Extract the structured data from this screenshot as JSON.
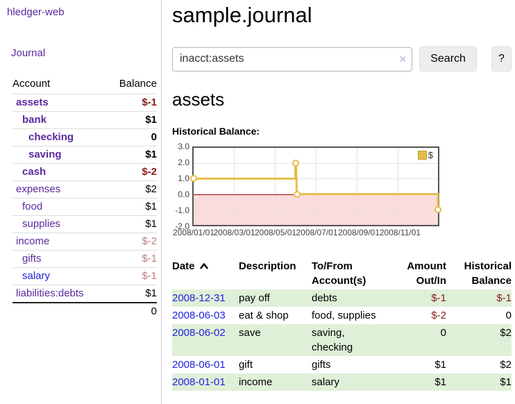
{
  "app": {
    "brand": "hledger-web",
    "nav_journal": "Journal"
  },
  "colors": {
    "purple_link": "#5b2a9e",
    "blue_link": "#2222dd",
    "negative": "#8b1a1a",
    "negative_dim": "#bd7f7f",
    "row_stripe_green": "#dff0d8",
    "chart_gold": "#e6bd4a",
    "chart_negative_fill": "#fbdcdc",
    "chart_zero_line": "#990000",
    "chart_border": "#545454"
  },
  "sidebar": {
    "header": {
      "account": "Account",
      "balance": "Balance"
    },
    "rows": [
      {
        "label": "assets",
        "row_cls": "ind1",
        "label_cls": "strong",
        "balance": "$-1",
        "balance_cls": "neg strong"
      },
      {
        "label": "bank",
        "row_cls": "ind2",
        "label_cls": "strong",
        "balance": "$1",
        "balance_cls": "strong"
      },
      {
        "label": "checking",
        "row_cls": "ind3",
        "label_cls": "strong",
        "balance": "0",
        "balance_cls": "strong"
      },
      {
        "label": "saving",
        "row_cls": "ind3",
        "label_cls": "strong",
        "balance": "$1",
        "balance_cls": "strong"
      },
      {
        "label": "cash",
        "row_cls": "ind2",
        "label_cls": "strong",
        "balance": "$-2",
        "balance_cls": "neg strong"
      },
      {
        "label": "expenses",
        "row_cls": "ind1",
        "label_cls": "",
        "balance": "$2",
        "balance_cls": ""
      },
      {
        "label": "food",
        "row_cls": "ind2",
        "label_cls": "",
        "balance": "$1",
        "balance_cls": ""
      },
      {
        "label": "supplies",
        "row_cls": "ind2",
        "label_cls": "",
        "balance": "$1",
        "balance_cls": ""
      },
      {
        "label": "income",
        "row_cls": "ind1",
        "label_cls": "",
        "balance": "$-2",
        "balance_cls": "dimneg"
      },
      {
        "label": "gifts",
        "row_cls": "ind2",
        "label_cls": "",
        "balance": "$-1",
        "balance_cls": "dimneg"
      },
      {
        "label": "salary",
        "row_cls": "ind2",
        "label_cls": "blue",
        "balance": "$-1",
        "balance_cls": "dimneg"
      },
      {
        "label": "liabilities:debts",
        "row_cls": "ind1",
        "label_cls": "",
        "balance": "$1",
        "balance_cls": ""
      }
    ],
    "total": "0"
  },
  "main": {
    "title": "sample.journal",
    "search": {
      "value": "inacct:assets",
      "clear_icon": "×",
      "button": "Search",
      "help": "?"
    },
    "account_heading": "assets",
    "chart_label": "Historical Balance:"
  },
  "chart_data": {
    "type": "line",
    "title": "Historical Balance:",
    "ylim": [
      -2,
      3
    ],
    "xmax": 365,
    "grid": true,
    "legend_position": "top-right",
    "yticks": [
      {
        "v": 3,
        "label": "3.0"
      },
      {
        "v": 2,
        "label": "2.0"
      },
      {
        "v": 1,
        "label": "1.0"
      },
      {
        "v": 0,
        "label": "0.0"
      },
      {
        "v": -1,
        "label": "-1.0"
      },
      {
        "v": -2,
        "label": "-2.0"
      }
    ],
    "xticks": [
      {
        "day": 0,
        "label": "2008/01/01"
      },
      {
        "day": 60,
        "label": "2008/03/01"
      },
      {
        "day": 121,
        "label": "2008/05/01"
      },
      {
        "day": 182,
        "label": "2008/07/01"
      },
      {
        "day": 244,
        "label": "2008/09/01"
      },
      {
        "day": 305,
        "label": "2008/11/01"
      }
    ],
    "series": [
      {
        "name": "$",
        "color": "#e6bd4a"
      }
    ],
    "line": [
      {
        "date": "2008-01-01",
        "day": 0,
        "v": 1
      },
      {
        "date": "2008-06-01",
        "day": 152,
        "v": 1
      },
      {
        "date": "2008-06-01",
        "day": 152,
        "v": 2
      },
      {
        "date": "2008-06-02",
        "day": 153,
        "v": 2
      },
      {
        "date": "2008-06-03",
        "day": 154,
        "v": 0
      },
      {
        "date": "2008-12-31",
        "day": 365,
        "v": 0
      },
      {
        "date": "2008-12-31",
        "day": 365,
        "v": -1
      }
    ],
    "markers": [
      {
        "date": "2008-01-01",
        "day": 0,
        "v": 1
      },
      {
        "date": "2008-06-01",
        "day": 152,
        "v": 2
      },
      {
        "date": "2008-06-03",
        "day": 154,
        "v": 0
      },
      {
        "date": "2008-12-31",
        "day": 365,
        "v": -1
      }
    ]
  },
  "register": {
    "headers": {
      "date": "Date",
      "description": "Description",
      "accounts": "To/From\nAccount(s)",
      "amount": "Amount\nOut/In",
      "balance": "Historical\nBalance"
    },
    "rows": [
      {
        "date": "2008-12-31",
        "description": "pay off",
        "accounts": "debts",
        "amount": "$-1",
        "amount_cls": "neg",
        "balance": "$-1",
        "balance_cls": "neg"
      },
      {
        "date": "2008-06-03",
        "description": "eat & shop",
        "accounts": "food, supplies",
        "amount": "$-2",
        "amount_cls": "neg",
        "balance": "0",
        "balance_cls": ""
      },
      {
        "date": "2008-06-02",
        "description": "save",
        "accounts": "saving,\nchecking",
        "amount": "0",
        "amount_cls": "",
        "balance": "$2",
        "balance_cls": ""
      },
      {
        "date": "2008-06-01",
        "description": "gift",
        "accounts": "gifts",
        "amount": "$1",
        "amount_cls": "",
        "balance": "$2",
        "balance_cls": ""
      },
      {
        "date": "2008-01-01",
        "description": "income",
        "accounts": "salary",
        "amount": "$1",
        "amount_cls": "",
        "balance": "$1",
        "balance_cls": ""
      }
    ]
  }
}
